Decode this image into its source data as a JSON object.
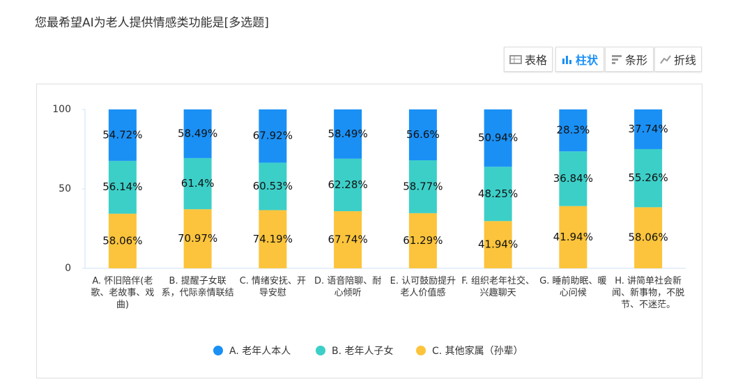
{
  "title": "您最希望AI为老人提供情感类功能是[多选题]",
  "toolbar": [
    "表格",
    "柱状",
    "条形",
    "折线"
  ],
  "chart_data": {
    "type": "bar",
    "stacking": "percent",
    "categories": [
      "A. 怀旧陪伴(老歌、老故事、戏曲)",
      "B. 提醒子女联系，代际亲情联结",
      "C. 情绪安抚、开导安慰",
      "D. 语音陪聊、耐心倾听",
      "E. 认可鼓励提升老人价值感",
      "F. 组织老年社交、兴趣聊天",
      "G. 睡前助眠、暖心问候",
      "H. 讲简单社会新闻、新事物，不脱节、不迷茫。"
    ],
    "series": [
      {
        "name": "A. 老年人本人",
        "color": "#1a90f5",
        "values": [
          54.72,
          58.49,
          67.92,
          58.49,
          56.6,
          50.94,
          28.3,
          37.74
        ],
        "value_labels": [
          "54.72%",
          "58.49%",
          "67.92%",
          "58.49%",
          "56.6%",
          "50.94%",
          "28.3%",
          "37.74%"
        ]
      },
      {
        "name": "B. 老年人子女",
        "color": "#3ccfc8",
        "values": [
          56.14,
          61.4,
          60.53,
          62.28,
          58.77,
          48.25,
          36.84,
          55.26
        ],
        "value_labels": [
          "56.14%",
          "61.4%",
          "60.53%",
          "62.28%",
          "58.77%",
          "48.25%",
          "36.84%",
          "55.26%"
        ]
      },
      {
        "name": "C. 其他家属（孙辈）",
        "color": "#fcc43c",
        "values": [
          58.06,
          70.97,
          74.19,
          67.74,
          61.29,
          41.94,
          41.94,
          58.06
        ],
        "value_labels": [
          "58.06%",
          "70.97%",
          "74.19%",
          "67.74%",
          "61.29%",
          "41.94%",
          "41.94%",
          "58.06%"
        ]
      }
    ],
    "ylim": [
      0,
      100
    ],
    "yticks": [
      0,
      50,
      100
    ],
    "grid": false
  }
}
